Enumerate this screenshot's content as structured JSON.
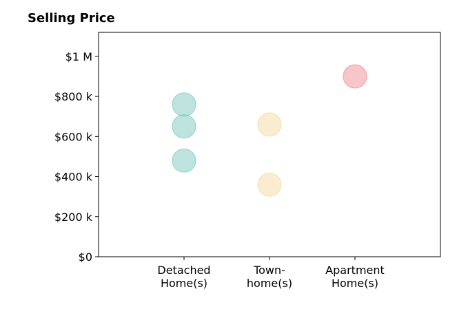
{
  "chart_data": {
    "type": "scatter",
    "title": "Selling Price",
    "xlabel": "",
    "ylabel": "",
    "categories": [
      [
        "Detached",
        "Home(s)"
      ],
      [
        "Town-",
        "home(s)"
      ],
      [
        "Apartment",
        "Home(s)"
      ]
    ],
    "ylim": [
      0,
      1120000
    ],
    "yticks": [
      {
        "value": 0,
        "label": "$0"
      },
      {
        "value": 200000,
        "label": "$200 k"
      },
      {
        "value": 400000,
        "label": "$400 k"
      },
      {
        "value": 600000,
        "label": "$600 k"
      },
      {
        "value": 800000,
        "label": "$800 k"
      },
      {
        "value": 1000000,
        "label": "$1 M"
      }
    ],
    "grid": false,
    "points": [
      {
        "category": 0,
        "y": 760000,
        "color": "#7ec8bf"
      },
      {
        "category": 0,
        "y": 650000,
        "color": "#7ec8bf"
      },
      {
        "category": 0,
        "y": 480000,
        "color": "#7ec8bf"
      },
      {
        "category": 1,
        "y": 660000,
        "color": "#f3d9a4"
      },
      {
        "category": 1,
        "y": 360000,
        "color": "#f3d9a4"
      },
      {
        "category": 2,
        "y": 900000,
        "color": "#f08c96"
      }
    ]
  }
}
